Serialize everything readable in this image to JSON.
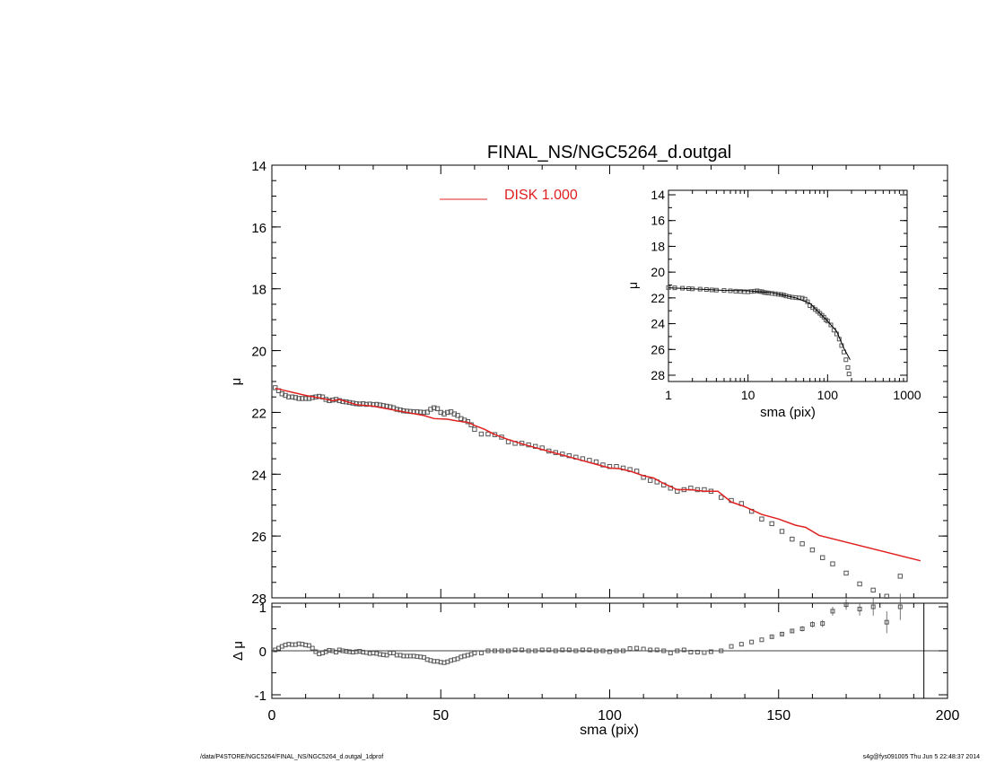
{
  "footer": {
    "left": "/data/P4STORE/NGC5264/FINAL_NS/NGC5264_d.outgal_1dprof",
    "right": "s4g@fys091005  Thu Jun  5 22:48:37 2014"
  },
  "chart_data": [
    {
      "id": "main",
      "type": "scatter",
      "title": "FINAL_NS/NGC5264_d.outgal",
      "xlabel": "",
      "ylabel": "μ",
      "xlim": [
        0,
        200
      ],
      "ylim": [
        28,
        14
      ],
      "y_inverted": true,
      "yticks": [
        14,
        16,
        18,
        20,
        22,
        24,
        26,
        28
      ],
      "xticks": [
        0,
        50,
        100,
        150,
        200
      ],
      "x_tick_labels_shown": false,
      "legend": {
        "position": "top-center",
        "entries": [
          {
            "label": "DISK  1.000",
            "color": "#e02020"
          }
        ]
      },
      "series": [
        {
          "name": "data",
          "style": "open-squares",
          "color": "#555555",
          "x": [
            1,
            2,
            3,
            4,
            5,
            6,
            7,
            8,
            9,
            10,
            11,
            12,
            13,
            14,
            15,
            16,
            17,
            18,
            19,
            20,
            21,
            22,
            23,
            24,
            25,
            26,
            27,
            28,
            29,
            30,
            31,
            32,
            33,
            34,
            35,
            36,
            37,
            38,
            39,
            40,
            41,
            42,
            43,
            44,
            45,
            46,
            47,
            48,
            49,
            50,
            51,
            52,
            53,
            54,
            55,
            56,
            57,
            58,
            59,
            60,
            62,
            64,
            66,
            68,
            70,
            72,
            74,
            76,
            78,
            80,
            82,
            84,
            86,
            88,
            90,
            92,
            94,
            96,
            98,
            100,
            102,
            104,
            106,
            108,
            110,
            112,
            114,
            116,
            118,
            120,
            122,
            124,
            126,
            128,
            130,
            133,
            136,
            139,
            142,
            145,
            148,
            151,
            154,
            157,
            160,
            163,
            166,
            170,
            174,
            178,
            182,
            186
          ],
          "y": [
            21.2,
            21.3,
            21.4,
            21.45,
            21.5,
            21.5,
            21.52,
            21.55,
            21.55,
            21.55,
            21.55,
            21.52,
            21.5,
            21.48,
            21.5,
            21.58,
            21.62,
            21.6,
            21.58,
            21.62,
            21.65,
            21.66,
            21.68,
            21.7,
            21.72,
            21.73,
            21.72,
            21.74,
            21.73,
            21.75,
            21.74,
            21.76,
            21.78,
            21.8,
            21.82,
            21.85,
            21.9,
            21.92,
            21.95,
            21.96,
            21.97,
            21.98,
            21.98,
            21.99,
            22.0,
            21.99,
            21.9,
            21.85,
            21.88,
            22.0,
            22.05,
            22.0,
            21.98,
            22.05,
            22.1,
            22.2,
            22.25,
            22.3,
            22.4,
            22.55,
            22.7,
            22.7,
            22.72,
            22.8,
            22.95,
            23.0,
            23.0,
            23.05,
            23.1,
            23.15,
            23.25,
            23.3,
            23.35,
            23.4,
            23.45,
            23.5,
            23.55,
            23.6,
            23.7,
            23.75,
            23.75,
            23.8,
            23.85,
            23.9,
            24.1,
            24.2,
            24.25,
            24.35,
            24.45,
            24.55,
            24.5,
            24.45,
            24.5,
            24.5,
            24.55,
            24.75,
            24.85,
            24.95,
            25.2,
            25.45,
            25.6,
            25.85,
            26.1,
            26.25,
            26.45,
            26.7,
            26.9,
            27.2,
            27.55,
            27.75,
            27.95,
            27.3
          ]
        },
        {
          "name": "DISK  1.000",
          "style": "line",
          "color": "#e02020",
          "x": [
            1,
            10,
            15,
            18,
            20,
            25,
            30,
            35,
            40,
            45,
            48,
            52,
            55,
            58,
            60,
            63,
            66,
            70,
            75,
            80,
            85,
            90,
            95,
            100,
            103,
            106,
            110,
            113,
            116,
            120,
            124,
            128,
            132,
            136,
            140,
            145,
            150,
            155,
            158,
            162,
            192
          ],
          "y": [
            21.22,
            21.45,
            21.55,
            21.62,
            21.58,
            21.75,
            21.8,
            21.9,
            22.0,
            22.1,
            22.2,
            22.22,
            22.28,
            22.32,
            22.42,
            22.55,
            22.72,
            22.88,
            23.05,
            23.2,
            23.35,
            23.5,
            23.65,
            23.8,
            23.82,
            23.9,
            24.05,
            24.12,
            24.3,
            24.5,
            24.5,
            24.55,
            24.55,
            24.9,
            25.05,
            25.3,
            25.45,
            25.65,
            25.72,
            25.98,
            26.8
          ]
        }
      ]
    },
    {
      "id": "residual",
      "type": "scatter",
      "xlabel": "sma (pix)",
      "ylabel": "Δ μ",
      "xlim": [
        0,
        200
      ],
      "ylim": [
        -1,
        1
      ],
      "yticks": [
        -1,
        0,
        1
      ],
      "xticks": [
        0,
        50,
        100,
        150,
        200
      ],
      "zero_line": true,
      "vertical_line_x": 193,
      "series": [
        {
          "name": "residual",
          "style": "open-squares",
          "color": "#555555",
          "x": [
            1,
            2,
            3,
            4,
            5,
            6,
            7,
            8,
            9,
            10,
            11,
            12,
            13,
            14,
            15,
            16,
            17,
            18,
            19,
            20,
            21,
            22,
            23,
            24,
            25,
            26,
            27,
            28,
            29,
            30,
            31,
            32,
            33,
            34,
            35,
            36,
            37,
            38,
            39,
            40,
            41,
            42,
            43,
            44,
            45,
            46,
            47,
            48,
            49,
            50,
            51,
            52,
            53,
            54,
            55,
            56,
            57,
            58,
            59,
            60,
            62,
            64,
            66,
            68,
            70,
            72,
            74,
            76,
            78,
            80,
            82,
            84,
            86,
            88,
            90,
            92,
            94,
            96,
            98,
            100,
            102,
            104,
            106,
            108,
            110,
            112,
            114,
            116,
            118,
            120,
            122,
            124,
            126,
            128,
            130,
            133,
            136,
            139,
            142,
            145,
            148,
            151,
            154,
            157,
            160,
            163,
            166,
            170,
            174,
            178,
            182,
            186
          ],
          "y": [
            0.02,
            0.06,
            0.1,
            0.13,
            0.15,
            0.14,
            0.14,
            0.16,
            0.15,
            0.13,
            0.12,
            0.06,
            -0.02,
            -0.07,
            -0.05,
            -0.02,
            0.01,
            0.0,
            -0.03,
            0.02,
            0.0,
            -0.01,
            -0.02,
            -0.03,
            -0.02,
            -0.01,
            -0.03,
            -0.04,
            -0.06,
            -0.05,
            -0.06,
            -0.08,
            -0.09,
            -0.1,
            -0.05,
            -0.05,
            -0.1,
            -0.1,
            -0.12,
            -0.12,
            -0.12,
            -0.12,
            -0.13,
            -0.14,
            -0.15,
            -0.2,
            -0.22,
            -0.24,
            -0.24,
            -0.26,
            -0.27,
            -0.25,
            -0.22,
            -0.2,
            -0.18,
            -0.14,
            -0.12,
            -0.1,
            -0.08,
            -0.05,
            -0.05,
            0.0,
            0.0,
            0.0,
            0.0,
            0.02,
            0.02,
            0.0,
            0.0,
            0.02,
            0.02,
            0.0,
            0.02,
            0.02,
            0.0,
            0.02,
            0.02,
            0.0,
            0.0,
            -0.02,
            0.0,
            0.0,
            0.05,
            0.06,
            0.04,
            0.02,
            0.02,
            0.0,
            -0.05,
            0.0,
            0.02,
            -0.03,
            -0.03,
            -0.04,
            -0.02,
            0.0,
            0.1,
            0.15,
            0.2,
            0.25,
            0.32,
            0.38,
            0.45,
            0.5,
            0.6,
            0.62,
            0.9,
            1.05,
            0.95,
            1.0,
            0.65,
            1.0
          ],
          "yerr": [
            0,
            0,
            0,
            0,
            0,
            0,
            0,
            0,
            0,
            0,
            0,
            0,
            0,
            0,
            0,
            0,
            0,
            0,
            0,
            0,
            0,
            0,
            0,
            0,
            0,
            0,
            0,
            0,
            0,
            0,
            0,
            0,
            0,
            0,
            0,
            0,
            0,
            0,
            0,
            0,
            0,
            0,
            0,
            0,
            0,
            0,
            0,
            0,
            0,
            0,
            0,
            0,
            0,
            0,
            0,
            0,
            0,
            0,
            0,
            0,
            0,
            0,
            0,
            0,
            0,
            0,
            0,
            0,
            0,
            0,
            0,
            0,
            0,
            0,
            0,
            0,
            0,
            0,
            0,
            0,
            0,
            0,
            0,
            0,
            0,
            0,
            0,
            0,
            0,
            0,
            0,
            0,
            0,
            0,
            0,
            0,
            0,
            0,
            0,
            0,
            0.03,
            0.04,
            0.05,
            0.06,
            0.07,
            0.08,
            0.1,
            0.12,
            0.15,
            0.2,
            0.25,
            0.3
          ]
        }
      ]
    },
    {
      "id": "inset",
      "type": "scatter",
      "xlabel": "sma (pix)",
      "ylabel": "μ",
      "xscale": "log",
      "xlim": [
        1,
        1000
      ],
      "ylim": [
        28,
        14
      ],
      "y_inverted": true,
      "yticks": [
        14,
        16,
        18,
        20,
        22,
        24,
        26,
        28
      ],
      "xticks": [
        1,
        10,
        100,
        1000
      ],
      "series": [
        {
          "name": "data",
          "style": "open-squares",
          "color": "#555555",
          "x": [
            1,
            1.2,
            1.5,
            1.8,
            2,
            2.5,
            3,
            3.5,
            4,
            5,
            6,
            7,
            8,
            9,
            10,
            11,
            12,
            13,
            14,
            15,
            16,
            17,
            18,
            20,
            22,
            24,
            26,
            28,
            30,
            33,
            36,
            40,
            44,
            48,
            52,
            56,
            60,
            65,
            70,
            75,
            80,
            85,
            90,
            95,
            100,
            110,
            120,
            130,
            140,
            150,
            160,
            170,
            180,
            186
          ],
          "y": [
            21.2,
            21.22,
            21.25,
            21.28,
            21.3,
            21.32,
            21.35,
            21.38,
            21.4,
            21.42,
            21.45,
            21.48,
            21.5,
            21.52,
            21.53,
            21.5,
            21.48,
            21.45,
            21.5,
            21.52,
            21.58,
            21.6,
            21.62,
            21.65,
            21.68,
            21.72,
            21.74,
            21.78,
            21.85,
            21.9,
            21.95,
            21.98,
            22.0,
            22.02,
            22.1,
            22.3,
            22.6,
            22.75,
            22.9,
            23.05,
            23.2,
            23.35,
            23.5,
            23.7,
            23.8,
            24.1,
            24.5,
            24.8,
            25.2,
            25.7,
            26.2,
            26.8,
            27.4,
            27.9
          ]
        },
        {
          "name": "model",
          "style": "line",
          "color": "#000000",
          "x": [
            1,
            2,
            5,
            10,
            20,
            40,
            60,
            80,
            100,
            130,
            160,
            192
          ],
          "y": [
            21.22,
            21.3,
            21.42,
            21.45,
            21.6,
            22.0,
            22.42,
            23.2,
            23.8,
            24.6,
            25.9,
            26.8
          ]
        }
      ]
    }
  ]
}
